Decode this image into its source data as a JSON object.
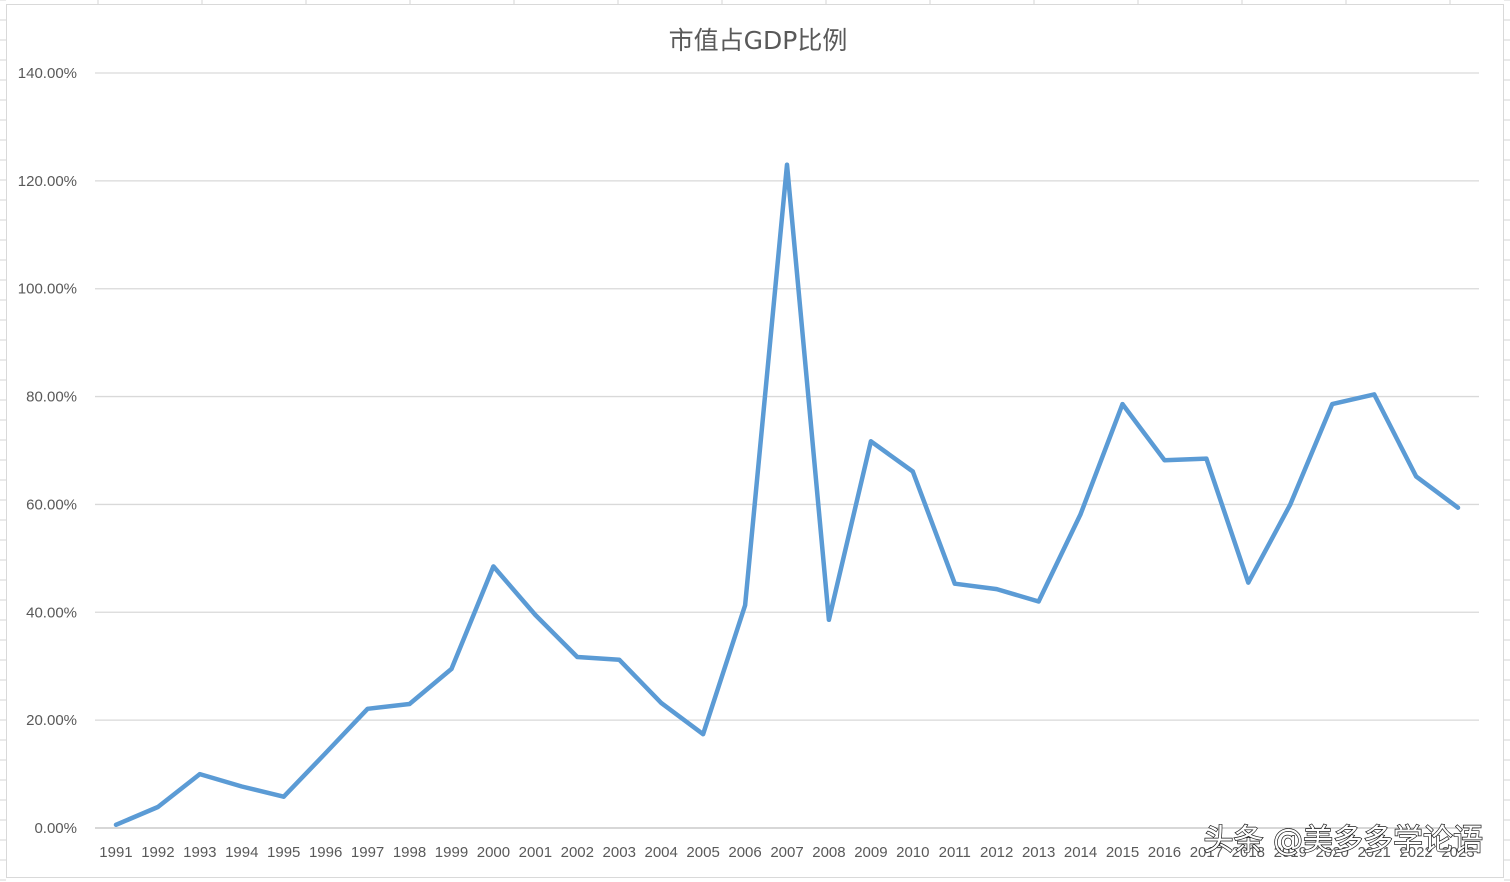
{
  "chart_data": {
    "type": "line",
    "title": "市值占GDP比例",
    "xlabel": "",
    "ylabel": "",
    "categories": [
      "1991",
      "1992",
      "1993",
      "1994",
      "1995",
      "1996",
      "1997",
      "1998",
      "1999",
      "2000",
      "2001",
      "2002",
      "2003",
      "2004",
      "2005",
      "2006",
      "2007",
      "2008",
      "2009",
      "2010",
      "2011",
      "2012",
      "2013",
      "2014",
      "2015",
      "2016",
      "2017",
      "2018",
      "2019",
      "2020",
      "2021",
      "2022",
      "2023"
    ],
    "series": [
      {
        "values": [
          0.6,
          3.9,
          10.0,
          7.7,
          5.8,
          13.9,
          22.1,
          23.0,
          29.5,
          48.5,
          39.5,
          31.7,
          31.2,
          23.2,
          17.4,
          41.3,
          123.0,
          38.6,
          71.7,
          66.1,
          45.3,
          44.3,
          42.0,
          58.2,
          78.6,
          68.2,
          68.5,
          45.5,
          60.0,
          78.6,
          80.4,
          65.2,
          59.4
        ],
        "color": "#5B9BD5"
      }
    ],
    "ylim": [
      0,
      140
    ],
    "y_ticks": [
      "0.00%",
      "20.00%",
      "40.00%",
      "60.00%",
      "80.00%",
      "100.00%",
      "120.00%",
      "140.00%"
    ],
    "y_format": "percent",
    "grid": true,
    "legend": "none"
  },
  "watermark": {
    "text": "头条 @美多多学论语"
  },
  "colors": {
    "gridline": "#d9d9d9",
    "axis": "#bfbfbf",
    "line": "#5B9BD5",
    "text": "#595959"
  }
}
